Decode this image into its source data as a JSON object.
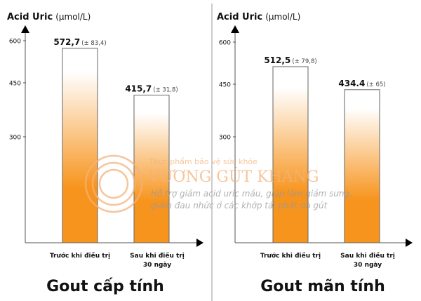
{
  "colors": {
    "bar_bottom": "#f7941d",
    "bar_top": "#ffffff",
    "axis": "#222222",
    "watermark": "#f3b27a"
  },
  "watermark": {
    "line1": "Thực phẩm bảo vệ sức khỏe",
    "line2": "VƯƠNG GÚT KHANG",
    "line3": "Hỗ trợ giảm acid uric máu, giúp làm giảm sưng,",
    "line4": "giảm đau nhức ở các khớp tái phát do gút"
  },
  "chart_data": [
    {
      "type": "bar",
      "title": "Gout cấp tính",
      "ylabel_bold": "Acid Uric",
      "ylabel_unit": "(µmol/L)",
      "yticks": [
        600,
        450,
        300
      ],
      "categories": [
        "Trước khi điều trị",
        "Sau khi điều trị 30 ngày"
      ],
      "category_lines": [
        [
          "Trước khi điều trị"
        ],
        [
          "Sau khi điều trị",
          "30 ngày"
        ]
      ],
      "values": [
        572.7,
        415.7
      ],
      "value_labels": [
        "572,7",
        "415,7"
      ],
      "error_labels": [
        "(± 83,4)",
        "(± 31,8)"
      ]
    },
    {
      "type": "bar",
      "title": "Gout mãn tính",
      "ylabel_bold": "Acid Uric",
      "ylabel_unit": "(µmol/L)",
      "yticks": [
        600,
        450,
        300
      ],
      "categories": [
        "Trước khi điều trị",
        "Sau khi điều trị 30 ngày"
      ],
      "category_lines": [
        [
          "Trước khi điều trị"
        ],
        [
          "Sau khi điều trị",
          "30 ngày"
        ]
      ],
      "values": [
        512.5,
        434.4
      ],
      "value_labels": [
        "512,5",
        "434.4"
      ],
      "error_labels": [
        "(± 79,8)",
        "(± 65)"
      ]
    }
  ]
}
